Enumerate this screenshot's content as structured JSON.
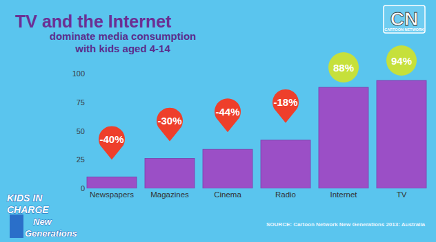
{
  "chart_data": {
    "type": "bar",
    "title": "TV and the Internet",
    "subtitle": [
      "dominate media consumption",
      "with kids aged 4-14"
    ],
    "categories": [
      "Newspapers",
      "Magazines",
      "Cinema",
      "Radio",
      "Internet",
      "TV"
    ],
    "values": [
      10,
      26,
      34,
      42,
      88,
      94
    ],
    "value_labels": [
      null,
      null,
      null,
      null,
      "88%",
      "94%"
    ],
    "data_labels": true,
    "color": "#9b4fc6",
    "change_values": [
      -40,
      -30,
      -44,
      -18,
      null,
      null
    ],
    "change_labels": [
      "-40%",
      "-30%",
      "-44%",
      "-18%",
      null,
      null
    ],
    "ylim": [
      0,
      100
    ],
    "yticks": [
      0,
      25,
      50,
      75,
      100
    ],
    "grid": false,
    "brand": {
      "logo": "CN",
      "name": "CARTOON NETWORK"
    },
    "badge": [
      "KIDS IN",
      "CHARGE",
      "New",
      "Generations"
    ],
    "source": "SOURCE: Cartoon Network New Generations 2013: Australia"
  }
}
